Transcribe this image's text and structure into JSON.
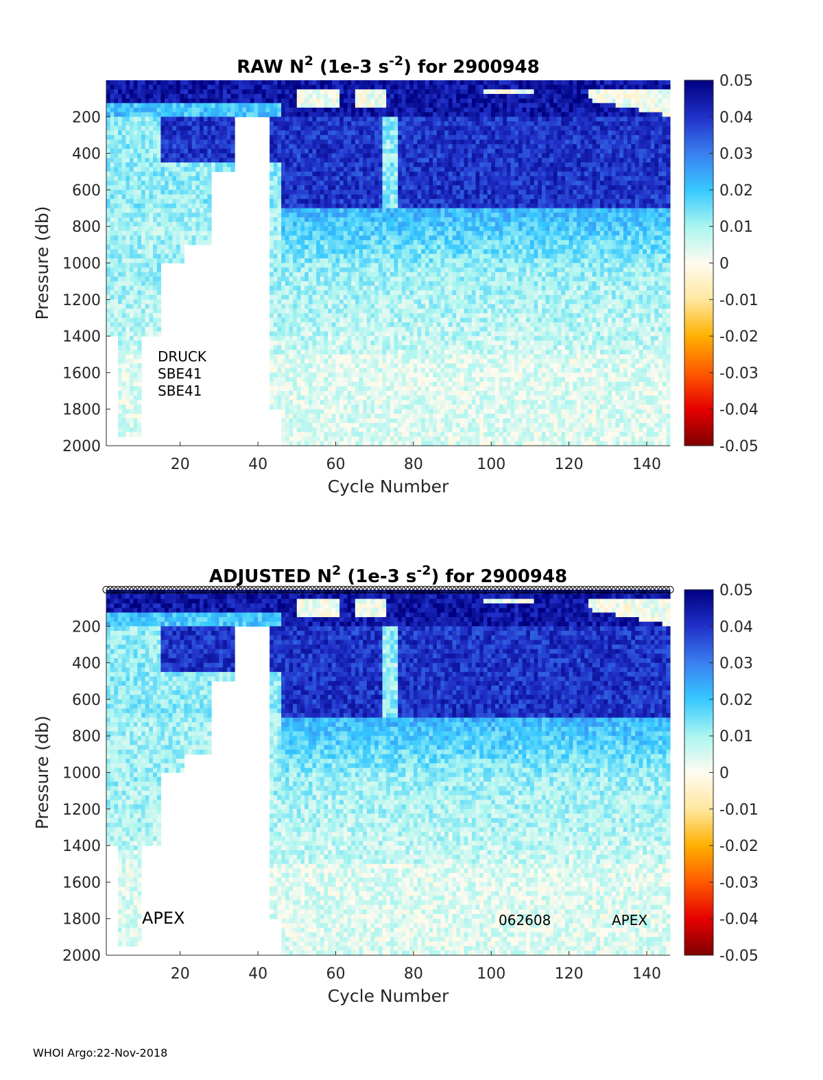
{
  "chart_data": [
    {
      "type": "heatmap",
      "title_prefix": "RAW N",
      "title_sup": "2",
      "title_mid": " (1e-3 s",
      "title_sup2": "-2",
      "title_suffix": ") for 2900948",
      "xlabel": "Cycle Number",
      "ylabel": "Pressure (db)",
      "xlim": [
        1,
        146
      ],
      "ylim": [
        2000,
        0
      ],
      "xticks": [
        "20",
        "40",
        "60",
        "80",
        "100",
        "120",
        "140"
      ],
      "yticks": [
        "200",
        "400",
        "600",
        "800",
        "1000",
        "1200",
        "1400",
        "1600",
        "1800",
        "2000"
      ],
      "colorbar_ticks": [
        "0.05",
        "0.04",
        "0.03",
        "0.02",
        "0.01",
        "0",
        "-0.01",
        "-0.02",
        "-0.03",
        "-0.04",
        "-0.05"
      ],
      "clim": [
        -0.05,
        0.05
      ],
      "colormap": "jet-like with white-cream center",
      "annotations": [
        "DRUCK",
        "SBE41",
        "SBE41"
      ],
      "profile_max_depth_by_cycle_range": [
        {
          "cycles": [
            1,
            3
          ],
          "max_pressure": 1400
        },
        {
          "cycles": [
            4,
            9
          ],
          "max_pressure": 1950
        },
        {
          "cycles": [
            10,
            14
          ],
          "max_pressure": 1400
        },
        {
          "cycles": [
            15,
            20
          ],
          "max_pressure": 1000
        },
        {
          "cycles": [
            21,
            27
          ],
          "max_pressure": 900
        },
        {
          "cycles": [
            28,
            33
          ],
          "max_pressure": 500
        },
        {
          "cycles": [
            34,
            42
          ],
          "max_pressure": 200
        },
        {
          "cycles": [
            43,
            45
          ],
          "max_pressure": 1800
        },
        {
          "cycles": [
            46,
            146
          ],
          "max_pressure": 2000
        }
      ],
      "n2_zones": [
        {
          "pressure": [
            0,
            200
          ],
          "cycles": [
            46,
            146
          ],
          "pattern": "surface stratification up to 0.05, cream patches near 0 at cycles 50-60, 65-72, 125-145"
        },
        {
          "pressure": [
            200,
            700
          ],
          "cycles": [
            46,
            146
          ],
          "value": 0.04
        },
        {
          "pressure": [
            700,
            1000
          ],
          "cycles": [
            46,
            146
          ],
          "value": 0.02
        },
        {
          "pressure": [
            1000,
            1500
          ],
          "cycles": [
            1,
            146
          ],
          "value": 0.01
        },
        {
          "pressure": [
            1500,
            2000
          ],
          "cycles": [
            1,
            146
          ],
          "value": 0.004
        }
      ]
    },
    {
      "type": "heatmap",
      "title_prefix": "ADJUSTED N",
      "title_sup": "2",
      "title_mid": " (1e-3 s",
      "title_sup2": "-2",
      "title_suffix": ") for 2900948",
      "xlabel": "Cycle Number",
      "ylabel": "Pressure (db)",
      "xlim": [
        1,
        146
      ],
      "ylim": [
        2000,
        0
      ],
      "xticks": [
        "20",
        "40",
        "60",
        "80",
        "100",
        "120",
        "140"
      ],
      "yticks": [
        "200",
        "400",
        "600",
        "800",
        "1000",
        "1200",
        "1400",
        "1600",
        "1800",
        "2000"
      ],
      "colorbar_ticks": [
        "0.05",
        "0.04",
        "0.03",
        "0.02",
        "0.01",
        "0",
        "-0.01",
        "-0.02",
        "-0.03",
        "-0.04",
        "-0.05"
      ],
      "clim": [
        -0.05,
        0.05
      ],
      "markers": "open circles at top of axis for each cycle (adjusted-data flag)",
      "annotations": [
        "APEX",
        "062608",
        "APEX"
      ]
    }
  ],
  "footer": "WHOI Argo:22-Nov-2018"
}
